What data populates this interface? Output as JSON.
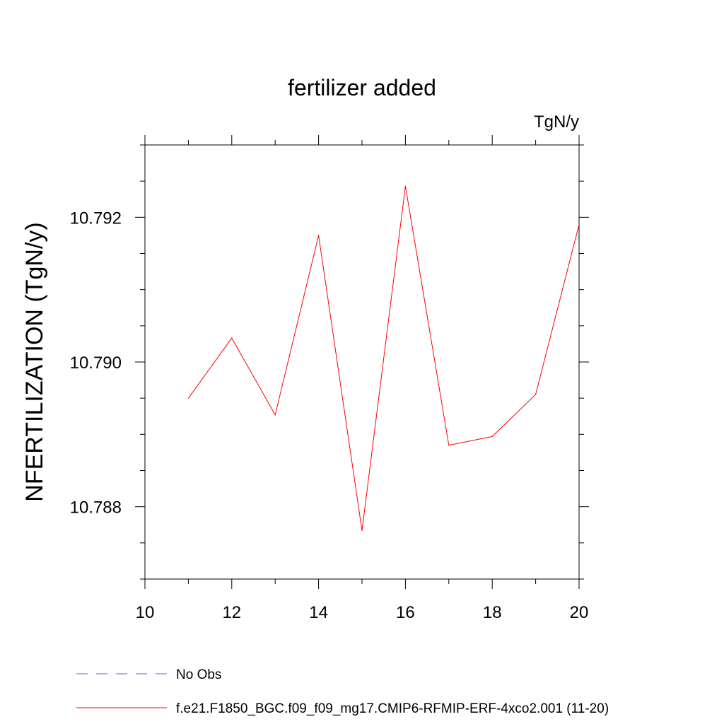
{
  "chart_data": {
    "type": "line",
    "title": "fertilizer added",
    "units": "TgN/y",
    "xlabel": "",
    "ylabel": "NFERTILIZATION  (TgN/y)",
    "xlim": [
      10,
      20
    ],
    "ylim": [
      10.787,
      10.793
    ],
    "x_ticks": [
      10,
      12,
      14,
      16,
      18,
      20
    ],
    "x_tick_labels": [
      "10",
      "12",
      "14",
      "16",
      "18",
      "20"
    ],
    "y_ticks": [
      10.788,
      10.79,
      10.792
    ],
    "y_tick_labels": [
      "10.788",
      "10.790",
      "10.792"
    ],
    "grid": false,
    "legend_position": "bottom",
    "series": [
      {
        "name": "f.e21.F1850_BGC.f09_f09_mg17.CMIP6-RFMIP-ERF-4xco2.001 (11-20)",
        "color": "#ff0000",
        "style": "solid",
        "x": [
          11,
          12,
          13,
          14,
          15,
          16,
          17,
          18,
          19,
          20
        ],
        "values": [
          10.7895,
          10.79033,
          10.78927,
          10.79175,
          10.78767,
          10.79243,
          10.78885,
          10.78897,
          10.78955,
          10.7919
        ]
      },
      {
        "name": "No Obs",
        "color": "#6a5acd",
        "style": "dashed",
        "x": [],
        "values": []
      }
    ]
  }
}
